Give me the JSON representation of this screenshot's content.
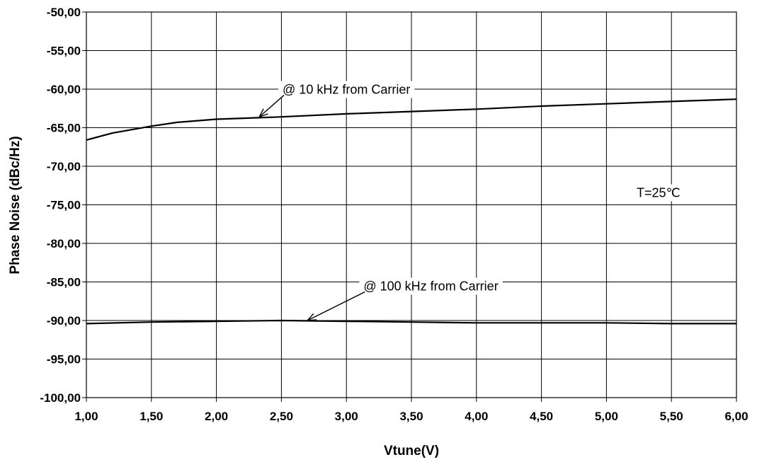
{
  "chart_data": {
    "type": "line",
    "xlabel": "Vtune(V)",
    "ylabel": "Phase Noise (dBc/Hz)",
    "xlim": [
      1.0,
      6.0
    ],
    "ylim": [
      -100.0,
      -50.0
    ],
    "x_ticks": [
      "1,00",
      "1,50",
      "2,00",
      "2,50",
      "3,00",
      "3,50",
      "4,00",
      "4,50",
      "5,00",
      "5,50",
      "6,00"
    ],
    "y_ticks": [
      "-50,00",
      "-55,00",
      "-60,00",
      "-65,00",
      "-70,00",
      "-75,00",
      "-80,00",
      "-85,00",
      "-90,00",
      "-95,00",
      "-100,00"
    ],
    "grid": true,
    "series": [
      {
        "x": [
          1.0,
          1.2,
          1.4,
          1.5,
          1.7,
          2.0,
          2.5,
          3.0,
          3.5,
          4.0,
          4.5,
          5.0,
          5.5,
          6.0
        ],
        "values": [
          -66.6,
          -65.7,
          -65.1,
          -64.8,
          -64.3,
          -63.9,
          -63.6,
          -63.2,
          -62.9,
          -62.6,
          -62.2,
          -61.9,
          -61.6,
          -61.3
        ]
      },
      {
        "x": [
          1.0,
          1.5,
          2.0,
          2.5,
          3.0,
          3.5,
          4.0,
          4.5,
          5.0,
          5.5,
          6.0
        ],
        "values": [
          -90.4,
          -90.2,
          -90.1,
          -90.0,
          -90.1,
          -90.2,
          -90.3,
          -90.3,
          -90.3,
          -90.4,
          -90.4
        ]
      }
    ],
    "annotations": [
      {
        "name": "anno-10khz",
        "text": "@ 10 kHz from Carrier",
        "x": 3.0,
        "y": -60.6,
        "arrow_to": [
          2.33,
          -63.6
        ]
      },
      {
        "name": "anno-100khz",
        "text": "@ 100 kHz from Carrier",
        "x": 3.65,
        "y": -86.1,
        "arrow_to": [
          2.7,
          -90.0
        ]
      },
      {
        "name": "anno-temperature",
        "text": "T=25℃",
        "x": 5.4,
        "y": -74.0
      }
    ]
  }
}
